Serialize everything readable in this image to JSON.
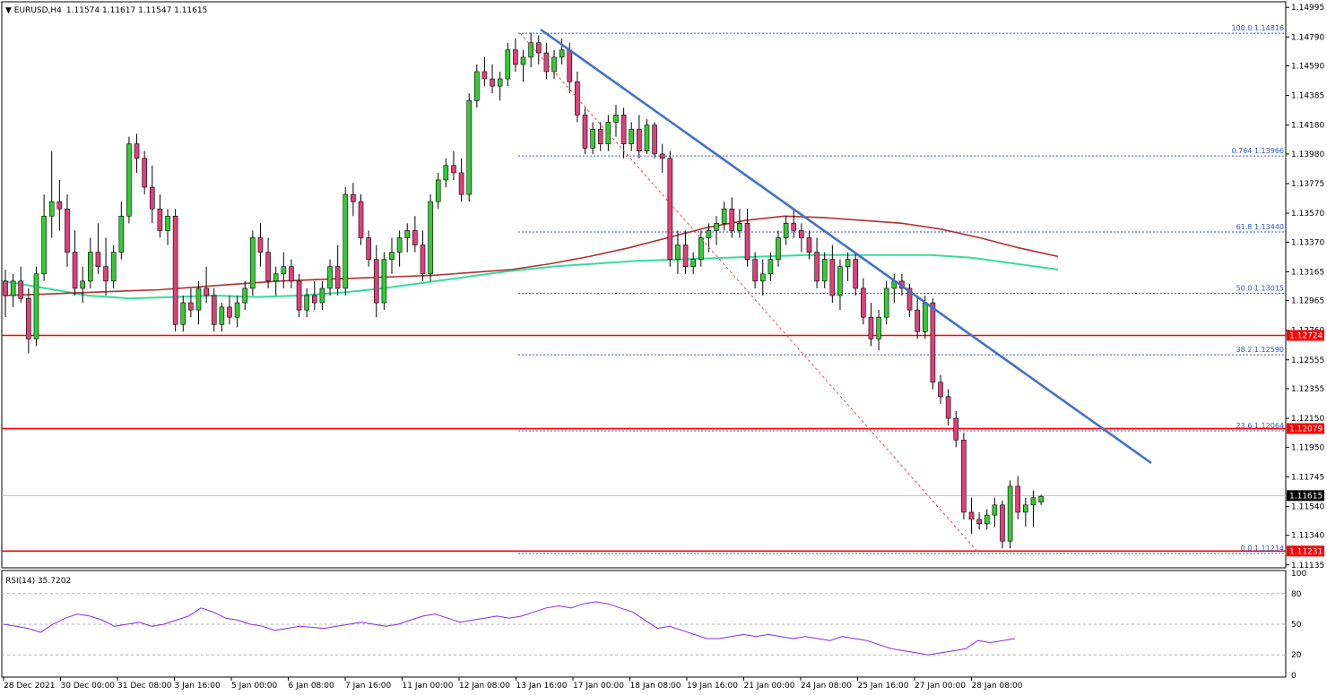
{
  "header": {
    "symbol_label": "EURUSD,H4",
    "ohlc_text": "1.11574 1.11617 1.11547 1.11615"
  },
  "rsi_panel": {
    "label": "RSI(14) 35.7202",
    "levels": [
      "100",
      "80",
      "50",
      "20",
      "0"
    ]
  },
  "colors": {
    "bull": "#33cc33",
    "bear": "#e0407a",
    "ma_red": "#b03030",
    "ma_green": "#33dd99",
    "trendline": "#4472c4",
    "support_line": "#ff0000",
    "fib": "#3355cc",
    "rsi_line": "#8a2be2"
  },
  "chart_data": {
    "type": "candlestick",
    "symbol": "EURUSD",
    "timeframe": "H4",
    "price_axis_ticks": [
      "1.14995",
      "1.14790",
      "1.14590",
      "1.14385",
      "1.14180",
      "1.13980",
      "1.13775",
      "1.13570",
      "1.13370",
      "1.13165",
      "1.12965",
      "1.12760",
      "1.12555",
      "1.12355",
      "1.12150",
      "1.11950",
      "1.11745",
      "1.11540",
      "1.11340",
      "1.11135"
    ],
    "ylim": [
      1.1107,
      1.1502
    ],
    "time_axis_labels": [
      "28 Dec 2021",
      "30 Dec 00:00",
      "31 Dec 08:00",
      "3 Jan 16:00",
      "5 Jan 00:00",
      "6 Jan 08:00",
      "7 Jan 16:00",
      "11 Jan 00:00",
      "12 Jan 08:00",
      "13 Jan 16:00",
      "17 Jan 00:00",
      "18 Jan 08:00",
      "19 Jan 16:00",
      "21 Jan 00:00",
      "24 Jan 08:00",
      "25 Jan 16:00",
      "27 Jan 00:00",
      "28 Jan 08:00"
    ],
    "horizontal_levels": [
      {
        "price": 1.12724,
        "tag": "1.12724"
      },
      {
        "price": 1.12079,
        "tag": "1.12079"
      },
      {
        "price": 1.11231,
        "tag": "1.11231"
      }
    ],
    "current_price": {
      "price": 1.11615,
      "tag": "1.11615"
    },
    "fibonacci": [
      {
        "label": "100.0 1.14816",
        "price": 1.14816
      },
      {
        "label": "0.764 1.13966",
        "price": 1.13966
      },
      {
        "label": "61.8 1.13440",
        "price": 1.1344
      },
      {
        "label": "50.0 1.13015",
        "price": 1.13015
      },
      {
        "label": "38.2 1.12590",
        "price": 1.1259
      },
      {
        "label": "23.6 1.12064",
        "price": 1.12064
      },
      {
        "label": "0.0 1.11214",
        "price": 1.11214
      }
    ],
    "candles": [
      [
        1.131,
        1.1318,
        1.1285,
        1.13
      ],
      [
        1.13,
        1.1315,
        1.1292,
        1.131
      ],
      [
        1.131,
        1.132,
        1.1295,
        1.1298
      ],
      [
        1.1298,
        1.1305,
        1.126,
        1.127
      ],
      [
        1.127,
        1.132,
        1.1265,
        1.1315
      ],
      [
        1.1315,
        1.137,
        1.131,
        1.1355
      ],
      [
        1.1355,
        1.14,
        1.134,
        1.1365
      ],
      [
        1.1365,
        1.138,
        1.1345,
        1.136
      ],
      [
        1.136,
        1.137,
        1.132,
        1.133
      ],
      [
        1.133,
        1.1345,
        1.13,
        1.1305
      ],
      [
        1.1305,
        1.132,
        1.1295,
        1.131
      ],
      [
        1.131,
        1.134,
        1.1305,
        1.133
      ],
      [
        1.133,
        1.135,
        1.1315,
        1.132
      ],
      [
        1.132,
        1.134,
        1.13,
        1.131
      ],
      [
        1.131,
        1.1335,
        1.1305,
        1.133
      ],
      [
        1.133,
        1.1365,
        1.1325,
        1.1355
      ],
      [
        1.1355,
        1.141,
        1.135,
        1.1405
      ],
      [
        1.1405,
        1.1412,
        1.1385,
        1.1395
      ],
      [
        1.1395,
        1.14,
        1.137,
        1.1375
      ],
      [
        1.1375,
        1.139,
        1.135,
        1.136
      ],
      [
        1.136,
        1.137,
        1.134,
        1.1345
      ],
      [
        1.1345,
        1.136,
        1.1335,
        1.1355
      ],
      [
        1.1355,
        1.136,
        1.1275,
        1.128
      ],
      [
        1.128,
        1.13,
        1.1275,
        1.1295
      ],
      [
        1.1295,
        1.1305,
        1.1285,
        1.129
      ],
      [
        1.129,
        1.131,
        1.128,
        1.1305
      ],
      [
        1.1305,
        1.132,
        1.1295,
        1.13
      ],
      [
        1.13,
        1.1305,
        1.1275,
        1.128
      ],
      [
        1.128,
        1.1295,
        1.1275,
        1.1292
      ],
      [
        1.1292,
        1.13,
        1.128,
        1.1285
      ],
      [
        1.1285,
        1.13,
        1.1278,
        1.1295
      ],
      [
        1.1295,
        1.131,
        1.129,
        1.1305
      ],
      [
        1.1305,
        1.1345,
        1.13,
        1.134
      ],
      [
        1.134,
        1.135,
        1.132,
        1.133
      ],
      [
        1.133,
        1.134,
        1.1305,
        1.131
      ],
      [
        1.131,
        1.132,
        1.13,
        1.1315
      ],
      [
        1.1315,
        1.133,
        1.1305,
        1.132
      ],
      [
        1.132,
        1.1325,
        1.1305,
        1.131
      ],
      [
        1.131,
        1.1315,
        1.1285,
        1.129
      ],
      [
        1.129,
        1.1305,
        1.1285,
        1.13
      ],
      [
        1.13,
        1.131,
        1.129,
        1.1295
      ],
      [
        1.1295,
        1.131,
        1.129,
        1.1305
      ],
      [
        1.1305,
        1.1325,
        1.13,
        1.132
      ],
      [
        1.132,
        1.1335,
        1.13,
        1.1305
      ],
      [
        1.1305,
        1.1375,
        1.13,
        1.137
      ],
      [
        1.137,
        1.1378,
        1.1355,
        1.1365
      ],
      [
        1.1365,
        1.137,
        1.1335,
        1.134
      ],
      [
        1.134,
        1.1345,
        1.132,
        1.1325
      ],
      [
        1.1325,
        1.1335,
        1.1285,
        1.1295
      ],
      [
        1.1295,
        1.133,
        1.129,
        1.1325
      ],
      [
        1.1325,
        1.134,
        1.1315,
        1.133
      ],
      [
        1.133,
        1.1345,
        1.132,
        1.134
      ],
      [
        1.134,
        1.135,
        1.133,
        1.1345
      ],
      [
        1.1345,
        1.1355,
        1.133,
        1.1335
      ],
      [
        1.1335,
        1.1345,
        1.131,
        1.1315
      ],
      [
        1.1315,
        1.137,
        1.131,
        1.1365
      ],
      [
        1.1365,
        1.1385,
        1.136,
        1.138
      ],
      [
        1.138,
        1.1395,
        1.1375,
        1.139
      ],
      [
        1.139,
        1.14,
        1.138,
        1.1385
      ],
      [
        1.1385,
        1.1395,
        1.1365,
        1.137
      ],
      [
        1.137,
        1.144,
        1.1365,
        1.1435
      ],
      [
        1.1435,
        1.146,
        1.143,
        1.1455
      ],
      [
        1.1455,
        1.1465,
        1.1445,
        1.145
      ],
      [
        1.145,
        1.146,
        1.144,
        1.1445
      ],
      [
        1.1445,
        1.1455,
        1.1435,
        1.145
      ],
      [
        1.145,
        1.1475,
        1.1445,
        1.147
      ],
      [
        1.147,
        1.1478,
        1.1455,
        1.146
      ],
      [
        1.146,
        1.147,
        1.1448,
        1.1465
      ],
      [
        1.1465,
        1.1482,
        1.1458,
        1.1475
      ],
      [
        1.1475,
        1.148,
        1.146,
        1.1468
      ],
      [
        1.1468,
        1.1475,
        1.145,
        1.1455
      ],
      [
        1.1455,
        1.147,
        1.145,
        1.1465
      ],
      [
        1.1465,
        1.1478,
        1.146,
        1.147
      ],
      [
        1.147,
        1.1475,
        1.144,
        1.1448
      ],
      [
        1.1448,
        1.1455,
        1.142,
        1.1425
      ],
      [
        1.1425,
        1.143,
        1.1398,
        1.1402
      ],
      [
        1.1402,
        1.142,
        1.1398,
        1.1415
      ],
      [
        1.1415,
        1.142,
        1.14,
        1.1405
      ],
      [
        1.1405,
        1.1425,
        1.14,
        1.142
      ],
      [
        1.142,
        1.1432,
        1.141,
        1.1425
      ],
      [
        1.1425,
        1.143,
        1.1395,
        1.1405
      ],
      [
        1.1405,
        1.142,
        1.14,
        1.1415
      ],
      [
        1.1415,
        1.1425,
        1.1395,
        1.14
      ],
      [
        1.14,
        1.1422,
        1.1398,
        1.1418
      ],
      [
        1.1418,
        1.142,
        1.1395,
        1.1398
      ],
      [
        1.1398,
        1.1405,
        1.1385,
        1.1395
      ],
      [
        1.1395,
        1.14,
        1.132,
        1.1325
      ],
      [
        1.1325,
        1.1345,
        1.1315,
        1.1335
      ],
      [
        1.1335,
        1.1345,
        1.1315,
        1.132
      ],
      [
        1.132,
        1.133,
        1.1315,
        1.1325
      ],
      [
        1.1325,
        1.1345,
        1.132,
        1.134
      ],
      [
        1.134,
        1.135,
        1.133,
        1.1345
      ],
      [
        1.1345,
        1.1355,
        1.1335,
        1.135
      ],
      [
        1.135,
        1.1365,
        1.1345,
        1.136
      ],
      [
        1.136,
        1.1368,
        1.134,
        1.1345
      ],
      [
        1.1345,
        1.136,
        1.134,
        1.135
      ],
      [
        1.135,
        1.136,
        1.132,
        1.1325
      ],
      [
        1.1325,
        1.133,
        1.1305,
        1.131
      ],
      [
        1.131,
        1.1325,
        1.13,
        1.1315
      ],
      [
        1.1315,
        1.133,
        1.131,
        1.1325
      ],
      [
        1.1325,
        1.1345,
        1.132,
        1.134
      ],
      [
        1.134,
        1.1355,
        1.1335,
        1.135
      ],
      [
        1.135,
        1.136,
        1.134,
        1.1345
      ],
      [
        1.1345,
        1.135,
        1.133,
        1.134
      ],
      [
        1.134,
        1.1345,
        1.1325,
        1.133
      ],
      [
        1.133,
        1.134,
        1.1305,
        1.131
      ],
      [
        1.131,
        1.133,
        1.1305,
        1.1325
      ],
      [
        1.1325,
        1.1335,
        1.1295,
        1.13
      ],
      [
        1.13,
        1.1325,
        1.129,
        1.132
      ],
      [
        1.132,
        1.133,
        1.131,
        1.1325
      ],
      [
        1.1325,
        1.133,
        1.13,
        1.1305
      ],
      [
        1.1305,
        1.1312,
        1.128,
        1.1285
      ],
      [
        1.1285,
        1.1295,
        1.1265,
        1.127
      ],
      [
        1.127,
        1.129,
        1.1262,
        1.1285
      ],
      [
        1.1285,
        1.131,
        1.128,
        1.1305
      ],
      [
        1.1305,
        1.1315,
        1.1295,
        1.131
      ],
      [
        1.131,
        1.1315,
        1.13,
        1.1305
      ],
      [
        1.1305,
        1.1308,
        1.1285,
        1.129
      ],
      [
        1.129,
        1.13,
        1.127,
        1.1275
      ],
      [
        1.1275,
        1.13,
        1.127,
        1.1295
      ],
      [
        1.1295,
        1.1298,
        1.1235,
        1.124
      ],
      [
        1.124,
        1.1245,
        1.1225,
        1.123
      ],
      [
        1.123,
        1.1235,
        1.121,
        1.1215
      ],
      [
        1.1215,
        1.122,
        1.1195,
        1.12
      ],
      [
        1.12,
        1.1205,
        1.1145,
        1.115
      ],
      [
        1.115,
        1.116,
        1.1135,
        1.1145
      ],
      [
        1.1145,
        1.115,
        1.1138,
        1.1142
      ],
      [
        1.1142,
        1.1152,
        1.1138,
        1.1148
      ],
      [
        1.1148,
        1.116,
        1.114,
        1.1155
      ],
      [
        1.1155,
        1.1158,
        1.1125,
        1.113
      ],
      [
        1.113,
        1.1172,
        1.1125,
        1.1168
      ],
      [
        1.1168,
        1.1175,
        1.1145,
        1.115
      ],
      [
        1.115,
        1.116,
        1.114,
        1.1155
      ],
      [
        1.1155,
        1.1165,
        1.114,
        1.116
      ],
      [
        1.1157,
        1.1162,
        1.1155,
        1.1161
      ]
    ],
    "ma_red": [
      1.13,
      1.1301,
      1.1302,
      1.1303,
      1.1304,
      1.1306,
      1.1308,
      1.131,
      1.1311,
      1.1312,
      1.1313,
      1.1314,
      1.1316,
      1.1318,
      1.1322,
      1.1327,
      1.1333,
      1.134,
      1.1347,
      1.1352,
      1.1355,
      1.1354,
      1.1352,
      1.135,
      1.1346,
      1.134,
      1.1333,
      1.1327
    ],
    "ma_green": [
      1.131,
      1.1305,
      1.13,
      1.1298,
      1.1299,
      1.13,
      1.1299,
      1.13,
      1.1302,
      1.1305,
      1.1309,
      1.1313,
      1.1317,
      1.132,
      1.1322,
      1.1324,
      1.1325,
      1.1326,
      1.1327,
      1.1328,
      1.1328,
      1.1328,
      1.1328,
      1.1326,
      1.1322,
      1.1318
    ],
    "rsi": [
      50,
      48,
      46,
      42,
      50,
      56,
      60,
      58,
      54,
      48,
      50,
      52,
      48,
      50,
      54,
      58,
      66,
      62,
      56,
      54,
      50,
      48,
      44,
      46,
      48,
      47,
      46,
      48,
      50,
      52,
      50,
      48,
      50,
      54,
      58,
      60,
      56,
      52,
      54,
      56,
      58,
      56,
      58,
      62,
      66,
      68,
      66,
      70,
      72,
      70,
      66,
      62,
      54,
      46,
      48,
      44,
      40,
      36,
      36,
      38,
      40,
      38,
      40,
      38,
      36,
      38,
      36,
      34,
      38,
      36,
      34,
      30,
      26,
      24,
      22,
      20,
      22,
      24,
      26,
      34,
      32,
      34,
      36
    ]
  }
}
